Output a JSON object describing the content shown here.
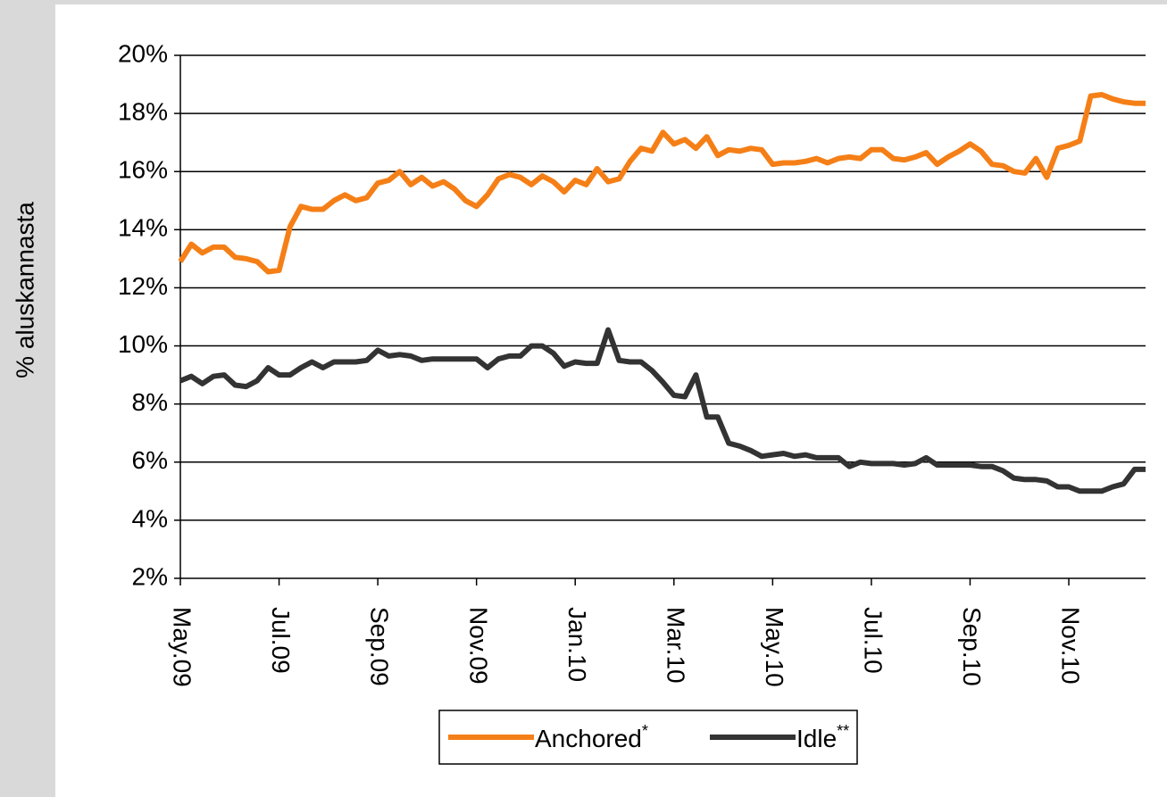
{
  "chart_data": {
    "type": "line",
    "y_label": "% aluskannasta",
    "categories": [
      "May.09",
      null,
      null,
      null,
      null,
      null,
      null,
      null,
      null,
      "Jul.09",
      null,
      null,
      null,
      null,
      null,
      null,
      null,
      null,
      "Sep.09",
      null,
      null,
      null,
      null,
      null,
      null,
      null,
      null,
      "Nov.09",
      null,
      null,
      null,
      null,
      null,
      null,
      null,
      null,
      "Jan.10",
      null,
      null,
      null,
      null,
      null,
      null,
      null,
      null,
      "Mar.10",
      null,
      null,
      null,
      null,
      null,
      null,
      null,
      null,
      "May.10",
      null,
      null,
      null,
      null,
      null,
      null,
      null,
      null,
      "Jul.10",
      null,
      null,
      null,
      null,
      null,
      null,
      null,
      null,
      "Sep.10",
      null,
      null,
      null,
      null,
      null,
      null,
      null,
      null,
      "Nov.10",
      null,
      null,
      null,
      null,
      null,
      null,
      null
    ],
    "series": [
      {
        "name": "Anchored",
        "marker": "*",
        "color": "#f57f17",
        "values": [
          12.9,
          13.5,
          13.2,
          13.4,
          13.4,
          13.05,
          13.0,
          12.9,
          12.55,
          12.6,
          14.1,
          14.8,
          14.7,
          14.7,
          15.0,
          15.2,
          15.0,
          15.1,
          15.6,
          15.7,
          16.0,
          15.55,
          15.8,
          15.5,
          15.65,
          15.4,
          15.0,
          14.8,
          15.2,
          15.75,
          15.9,
          15.8,
          15.55,
          15.85,
          15.65,
          15.3,
          15.7,
          15.55,
          16.1,
          15.65,
          15.75,
          16.35,
          16.8,
          16.7,
          17.35,
          16.95,
          17.1,
          16.8,
          17.2,
          16.55,
          16.75,
          16.7,
          16.8,
          16.75,
          16.25,
          16.3,
          16.3,
          16.35,
          16.45,
          16.3,
          16.45,
          16.5,
          16.45,
          16.75,
          16.75,
          16.45,
          16.4,
          16.5,
          16.65,
          16.25,
          16.5,
          16.7,
          16.95,
          16.7,
          16.25,
          16.2,
          16.0,
          15.95,
          16.45,
          15.8,
          16.8,
          16.9,
          17.05,
          18.6,
          18.65,
          18.5,
          18.4,
          18.35,
          18.35
        ]
      },
      {
        "name": "Idle",
        "marker": "**",
        "color": "#333333",
        "values": [
          8.8,
          8.95,
          8.7,
          8.95,
          9.0,
          8.65,
          8.6,
          8.8,
          9.25,
          9.0,
          9.0,
          9.25,
          9.45,
          9.25,
          9.45,
          9.45,
          9.45,
          9.5,
          9.85,
          9.65,
          9.7,
          9.65,
          9.5,
          9.55,
          9.55,
          9.55,
          9.55,
          9.55,
          9.25,
          9.55,
          9.65,
          9.65,
          10.0,
          10.0,
          9.75,
          9.3,
          9.45,
          9.4,
          9.4,
          10.55,
          9.5,
          9.45,
          9.45,
          9.15,
          8.75,
          8.3,
          8.25,
          9.0,
          7.55,
          7.55,
          6.65,
          6.55,
          6.4,
          6.2,
          6.25,
          6.3,
          6.2,
          6.25,
          6.15,
          6.15,
          6.15,
          5.85,
          6.0,
          5.95,
          5.95,
          5.95,
          5.9,
          5.95,
          6.15,
          5.9,
          5.9,
          5.9,
          5.9,
          5.85,
          5.85,
          5.7,
          5.45,
          5.4,
          5.4,
          5.35,
          5.15,
          5.15,
          5.0,
          5.0,
          5.0,
          5.15,
          5.25,
          5.75,
          5.75
        ]
      }
    ],
    "ylim": [
      2,
      20
    ],
    "yticks": [
      {
        "value": 2,
        "label": "2%"
      },
      {
        "value": 4,
        "label": "4%"
      },
      {
        "value": 6,
        "label": "6%"
      },
      {
        "value": 8,
        "label": "8%"
      },
      {
        "value": 10,
        "label": "10%"
      },
      {
        "value": 12,
        "label": "12%"
      },
      {
        "value": 14,
        "label": "14%"
      },
      {
        "value": 16,
        "label": "16%"
      },
      {
        "value": 18,
        "label": "18%"
      },
      {
        "value": 20,
        "label": "20%"
      }
    ],
    "grid": true,
    "legend": "bottom"
  }
}
